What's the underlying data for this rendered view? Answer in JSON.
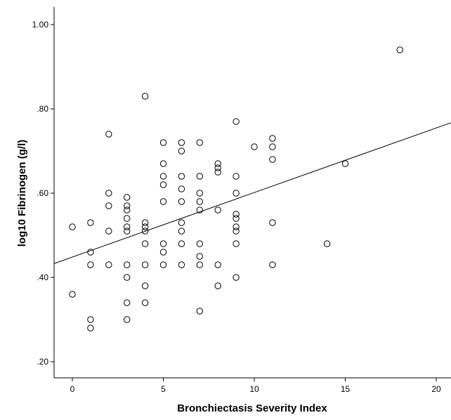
{
  "chart_data": {
    "type": "scatter",
    "title": "",
    "xlabel": "Bronchiectasis Severity Index",
    "ylabel": "log10 Fibrinogen (g/l)",
    "xlim": [
      -1,
      21
    ],
    "ylim": [
      0.18,
      1.05
    ],
    "x_ticks": [
      0,
      5,
      10,
      15,
      20
    ],
    "x_tick_labels": [
      "0",
      "5",
      "10",
      "15",
      "20"
    ],
    "y_ticks": [
      0.2,
      0.4,
      0.6,
      0.8,
      1.0
    ],
    "y_tick_labels": [
      ".20",
      ".40",
      ".60",
      ".80",
      "1.00"
    ],
    "grid": false,
    "legend": "none",
    "points": [
      [
        0,
        0.52
      ],
      [
        0,
        0.36
      ],
      [
        1,
        0.53
      ],
      [
        1,
        0.46
      ],
      [
        1,
        0.43
      ],
      [
        1,
        0.3
      ],
      [
        1,
        0.28
      ],
      [
        2,
        0.74
      ],
      [
        2,
        0.6
      ],
      [
        2,
        0.57
      ],
      [
        2,
        0.51
      ],
      [
        2,
        0.43
      ],
      [
        3,
        0.59
      ],
      [
        3,
        0.57
      ],
      [
        3,
        0.56
      ],
      [
        3,
        0.54
      ],
      [
        3,
        0.52
      ],
      [
        3,
        0.51
      ],
      [
        3,
        0.43
      ],
      [
        3,
        0.4
      ],
      [
        3,
        0.34
      ],
      [
        3,
        0.3
      ],
      [
        4,
        0.83
      ],
      [
        4,
        0.53
      ],
      [
        4,
        0.52
      ],
      [
        4,
        0.51
      ],
      [
        4,
        0.48
      ],
      [
        4,
        0.43
      ],
      [
        4,
        0.38
      ],
      [
        4,
        0.34
      ],
      [
        5,
        0.72
      ],
      [
        5,
        0.67
      ],
      [
        5,
        0.64
      ],
      [
        5,
        0.62
      ],
      [
        5,
        0.58
      ],
      [
        5,
        0.48
      ],
      [
        5,
        0.46
      ],
      [
        5,
        0.43
      ],
      [
        6,
        0.72
      ],
      [
        6,
        0.7
      ],
      [
        6,
        0.64
      ],
      [
        6,
        0.61
      ],
      [
        6,
        0.58
      ],
      [
        6,
        0.53
      ],
      [
        6,
        0.51
      ],
      [
        6,
        0.48
      ],
      [
        6,
        0.43
      ],
      [
        7,
        0.72
      ],
      [
        7,
        0.64
      ],
      [
        7,
        0.6
      ],
      [
        7,
        0.58
      ],
      [
        7,
        0.56
      ],
      [
        7,
        0.48
      ],
      [
        7,
        0.45
      ],
      [
        7,
        0.43
      ],
      [
        7,
        0.32
      ],
      [
        8,
        0.67
      ],
      [
        8,
        0.66
      ],
      [
        8,
        0.65
      ],
      [
        8,
        0.56
      ],
      [
        8,
        0.43
      ],
      [
        8,
        0.38
      ],
      [
        9,
        0.77
      ],
      [
        9,
        0.64
      ],
      [
        9,
        0.6
      ],
      [
        9,
        0.55
      ],
      [
        9,
        0.54
      ],
      [
        9,
        0.52
      ],
      [
        9,
        0.51
      ],
      [
        9,
        0.48
      ],
      [
        9,
        0.4
      ],
      [
        10,
        0.71
      ],
      [
        11,
        0.73
      ],
      [
        11,
        0.71
      ],
      [
        11,
        0.68
      ],
      [
        11,
        0.53
      ],
      [
        11,
        0.43
      ],
      [
        14,
        0.48
      ],
      [
        15,
        0.67
      ],
      [
        18,
        0.94
      ]
    ],
    "fit_line": {
      "x": [
        -1,
        21
      ],
      "y": [
        0.433,
        0.77
      ]
    },
    "colors": {
      "marker_stroke": "#000000",
      "line": "#000000",
      "axis": "#000000",
      "background": "#ffffff"
    }
  }
}
